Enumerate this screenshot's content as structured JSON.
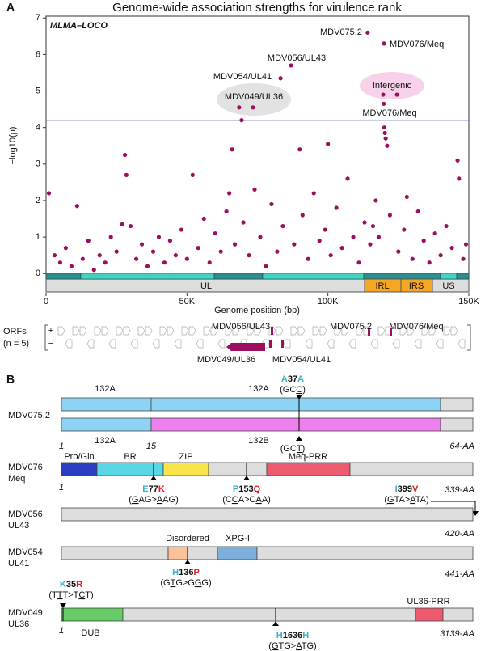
{
  "chart_data": {
    "type": "scatter",
    "panel": "A",
    "title": "Genome-wide association strengths for virulence rank",
    "method_label": "MLMA–LOCO",
    "xlabel": "Genome position (bp)",
    "ylabel": "−log10(p)",
    "color": "#9c0f5f",
    "threshold": 4.2,
    "threshold_color": "#2233bb",
    "xlim": [
      0,
      150000
    ],
    "ylim": [
      -0.15,
      7.05
    ],
    "xticks": [
      0,
      {
        "value": 50000,
        "label": "50K"
      },
      {
        "value": 100000,
        "label": "100K"
      },
      {
        "value": 150000,
        "label": "150K"
      }
    ],
    "yticks": [
      0,
      1,
      2,
      3,
      4,
      5,
      6,
      7
    ],
    "x": [
      1000,
      3000,
      5000,
      7000,
      9000,
      11000,
      13000,
      15000,
      17000,
      19000,
      21000,
      23000,
      25000,
      27000,
      28000,
      28500,
      30000,
      32000,
      34000,
      36000,
      38000,
      40000,
      42000,
      44000,
      46000,
      48000,
      50000,
      52000,
      54000,
      56000,
      58000,
      60000,
      62000,
      64000,
      65000,
      66000,
      67000,
      69400,
      68500,
      73400,
      70000,
      72000,
      74000,
      76000,
      78000,
      80000,
      82000,
      83200,
      84000,
      86900,
      88000,
      90000,
      91000,
      93000,
      95000,
      97000,
      99000,
      100000,
      101000,
      103000,
      105000,
      107000,
      109000,
      111000,
      113000,
      114100,
      115000,
      116000,
      117000,
      118000,
      119600,
      119900,
      119800,
      120000,
      120200,
      120500,
      121000,
      122000,
      124500,
      125000,
      127000,
      128000,
      130000,
      132000,
      134000,
      136000,
      138000,
      140000,
      142000,
      144000,
      146000,
      146500,
      148000,
      149000
    ],
    "values": [
      2.2,
      0.5,
      0.3,
      0.7,
      0.2,
      1.85,
      0.4,
      0.9,
      0.1,
      0.5,
      0.3,
      1.0,
      0.6,
      1.35,
      3.25,
      2.7,
      1.3,
      0.4,
      0.8,
      0.2,
      0.6,
      1.0,
      0.3,
      0.9,
      0.5,
      1.2,
      0.4,
      2.7,
      0.7,
      1.5,
      0.3,
      1.1,
      0.6,
      1.7,
      2.2,
      3.4,
      0.8,
      4.2,
      4.55,
      4.55,
      1.4,
      0.5,
      2.3,
      1.0,
      0.2,
      1.9,
      0.6,
      5.35,
      1.3,
      5.7,
      0.8,
      3.4,
      1.6,
      0.4,
      2.2,
      0.9,
      1.2,
      3.55,
      0.5,
      1.8,
      0.7,
      2.6,
      1.0,
      0.3,
      1.4,
      6.6,
      0.8,
      1.3,
      2.0,
      1.0,
      4.9,
      6.3,
      4.65,
      4.0,
      3.85,
      3.7,
      3.5,
      1.6,
      4.9,
      0.6,
      1.2,
      2.1,
      0.4,
      1.7,
      0.9,
      0.3,
      1.1,
      0.5,
      1.3,
      0.7,
      3.1,
      2.6,
      0.4,
      0.8
    ],
    "annotations": [
      "MDV075.2",
      "MDV076/Meq",
      "MDV056/UL43",
      "MDV054/UL41",
      "MDV049/UL36",
      "Intergenic",
      "MDV076/Meq"
    ],
    "regions": [
      "UL",
      "IRL",
      "IRS",
      "US"
    ],
    "orf_track": {
      "label": "ORFs",
      "count": "(n = 5)",
      "plus": "+",
      "minus": "−",
      "labels": [
        "MDV056/UL43",
        "MDV075.2",
        "MDV076/Meq",
        "MDV049/UL36",
        "MDV054/UL41"
      ]
    }
  },
  "panel_b": {
    "label": "B",
    "proteins": [
      {
        "name": [
          "MDV075.2"
        ],
        "length": "64-AA",
        "starts": [
          "1",
          "15"
        ],
        "domains": [
          "132A",
          "132A",
          "132A",
          "132B"
        ],
        "mutations": [
          {
            "from": "A",
            "pos": "37",
            "to": "A",
            "to_color": "#39b0c8",
            "codon": [
              "(GC",
              "C",
              ")"
            ],
            "codon2": [
              "(GC",
              "T",
              ")"
            ]
          }
        ]
      },
      {
        "name": [
          "MDV076",
          "Meq"
        ],
        "length": "339-AA",
        "starts": [
          "1"
        ],
        "domains": [
          "Pro/Gln",
          "BR",
          "ZIP",
          "Meq-PRR"
        ],
        "mutations": [
          {
            "from": "E",
            "pos": "77",
            "to": "K",
            "to_color": "#dd2222",
            "codon": [
              "(",
              "G",
              "AG>",
              "A",
              "AG)"
            ]
          },
          {
            "from": "P",
            "pos": "153",
            "to": "Q",
            "to_color": "#dd2222",
            "codon": [
              "(C",
              "C",
              "A>C",
              "A",
              "A)"
            ]
          },
          {
            "from": "I",
            "pos": "399",
            "to": "V",
            "to_color": "#dd2222",
            "codon": [
              "(",
              "G",
              "TA>",
              "A",
              "TA)"
            ]
          }
        ]
      },
      {
        "name": [
          "MDV056",
          "UL43"
        ],
        "length": "420-AA",
        "starts": [],
        "domains": [],
        "mutations": []
      },
      {
        "name": [
          "MDV054",
          "UL41"
        ],
        "length": "441-AA",
        "starts": [],
        "domains": [
          "Disordered",
          "XPG-I"
        ],
        "mutations": [
          {
            "from": "H",
            "pos": "136",
            "to": "P",
            "to_color": "#dd2222",
            "codon": [
              "(G",
              "T",
              "G>G",
              "G",
              "G)"
            ]
          }
        ]
      },
      {
        "name": [
          "MDV049",
          "UL36"
        ],
        "length": "3139-AA",
        "starts": [
          "1"
        ],
        "domains": [
          "DUB",
          "UL36-PRR"
        ],
        "mutations": [
          {
            "from": "K",
            "pos": "35",
            "to": "R",
            "to_color": "#dd2222",
            "codon": [
              "(T",
              "T",
              "T>T",
              "C",
              "T)"
            ]
          },
          {
            "from": "H",
            "pos": "1636",
            "to": "H",
            "to_color": "#39b0c8",
            "codon": [
              "(",
              "G",
              "TG>",
              "A",
              "TG)"
            ]
          }
        ]
      }
    ]
  }
}
